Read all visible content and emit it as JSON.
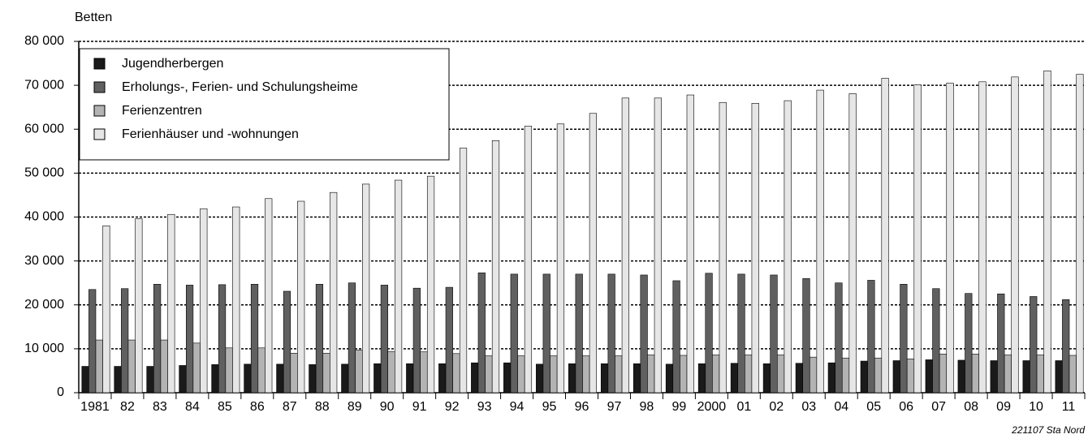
{
  "chart_data": {
    "type": "bar",
    "y_label": "Betten",
    "source": "221107 Sta Nord",
    "categories": [
      "1981",
      "82",
      "83",
      "84",
      "85",
      "86",
      "87",
      "88",
      "89",
      "90",
      "91",
      "92",
      "93",
      "94",
      "95",
      "96",
      "97",
      "98",
      "99",
      "2000",
      "01",
      "02",
      "03",
      "04",
      "05",
      "06",
      "07",
      "08",
      "09",
      "10",
      "11"
    ],
    "series": [
      {
        "name": "Jugendherbergen",
        "color": "#1a1a1a",
        "values": [
          6000,
          6000,
          6000,
          6200,
          6400,
          6500,
          6500,
          6400,
          6500,
          6600,
          6600,
          6600,
          6800,
          6800,
          6500,
          6600,
          6600,
          6600,
          6500,
          6600,
          6700,
          6600,
          6700,
          6800,
          7200,
          7300,
          7500,
          7400,
          7300,
          7300,
          7300
        ]
      },
      {
        "name": "Erholungs-, Ferien- und Schulungsheime",
        "color": "#606060",
        "values": [
          23500,
          23700,
          24700,
          24500,
          24600,
          24700,
          23100,
          24700,
          25000,
          24500,
          23800,
          24000,
          27300,
          27000,
          27000,
          27000,
          27000,
          26800,
          25500,
          27200,
          27000,
          26800,
          26000,
          25000,
          25600,
          24700,
          23700,
          22600,
          22500,
          21900,
          21200
        ]
      },
      {
        "name": "Ferienzentren",
        "color": "#b3b3b3",
        "values": [
          12000,
          12000,
          12000,
          11300,
          10200,
          10200,
          9000,
          9000,
          9700,
          9400,
          9300,
          8900,
          8400,
          8400,
          8400,
          8400,
          8400,
          8600,
          8500,
          8600,
          8600,
          8600,
          8100,
          7900,
          7900,
          7700,
          8800,
          8800,
          8600,
          8600,
          8500
        ]
      },
      {
        "name": "Ferienhäuser und -wohnungen",
        "color": "#e6e6e6",
        "values": [
          38000,
          39600,
          40600,
          41900,
          42300,
          44200,
          43600,
          45600,
          47500,
          48400,
          49300,
          55700,
          57400,
          60700,
          61200,
          63600,
          67100,
          67100,
          67800,
          66100,
          65900,
          66500,
          68900,
          68100,
          71600,
          70100,
          70500,
          70800,
          71900,
          73300,
          72500
        ]
      }
    ],
    "ylim": [
      0,
      80000
    ],
    "yticks": [
      0,
      {
        "value": 10000,
        "label": "10 000"
      },
      {
        "value": 20000,
        "label": "20 000"
      },
      {
        "value": 30000,
        "label": "30 000"
      },
      {
        "value": 40000,
        "label": "40 000"
      },
      {
        "value": 50000,
        "label": "50 000"
      },
      {
        "value": 60000,
        "label": "60 000"
      },
      {
        "value": 70000,
        "label": "70 000"
      },
      {
        "value": 80000,
        "label": "80 000"
      }
    ],
    "grid": true,
    "legend": "top-left"
  }
}
